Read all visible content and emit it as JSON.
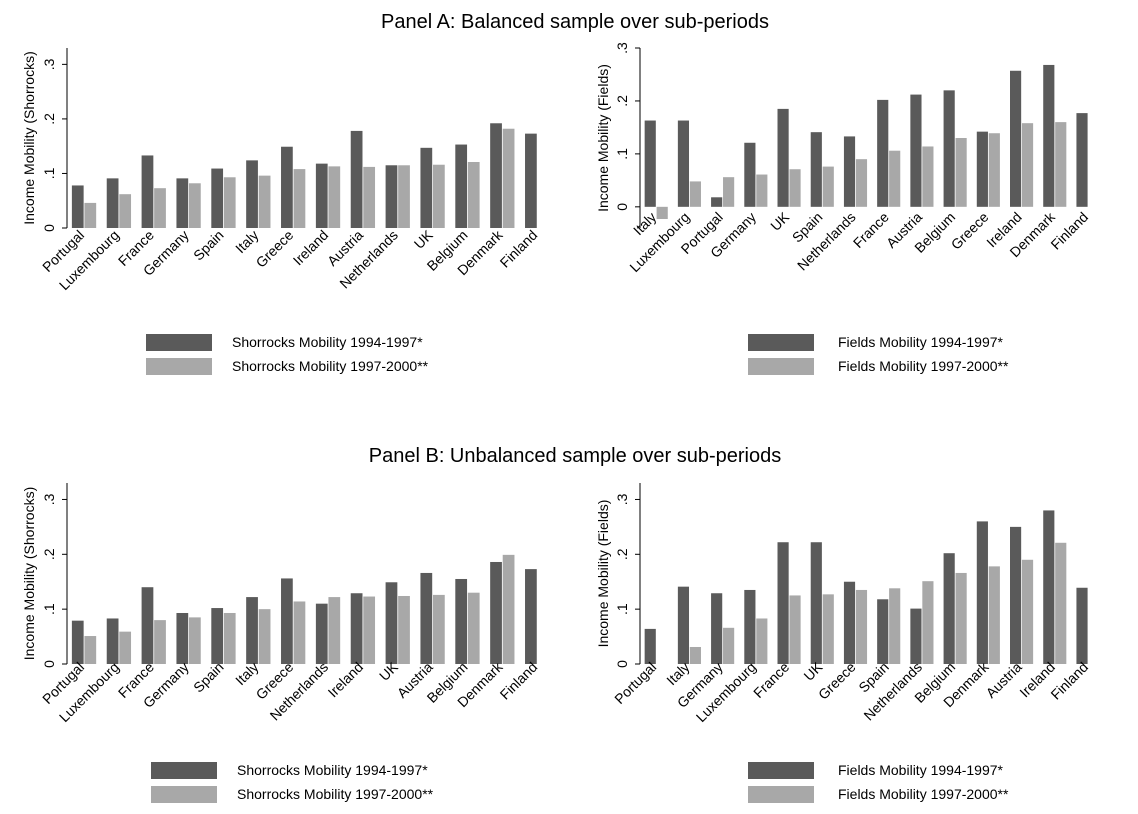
{
  "panels": [
    {
      "title": "Panel A: Balanced sample over sub-periods"
    },
    {
      "title": "Panel B: Unbalanced sample over sub-periods"
    }
  ],
  "colors": {
    "dark": "#5a5a5a",
    "light": "#a8a8a8",
    "axis": "#000000"
  },
  "chart_data": [
    {
      "type": "bar",
      "panel": "Panel A: Balanced sample over sub-periods",
      "ylabel": "Income Mobility (Shorrocks)",
      "ylim": [
        0,
        0.33
      ],
      "yticks": [
        0,
        0.1,
        0.2,
        0.3
      ],
      "ytick_labels": [
        "0",
        ".1",
        ".2",
        ".3"
      ],
      "grid": false,
      "categories": [
        "Portugal",
        "Luxembourg",
        "France",
        "Germany",
        "Spain",
        "Italy",
        "Greece",
        "Ireland",
        "Austria",
        "Netherlands",
        "UK",
        "Belgium",
        "Denmark",
        "Finland"
      ],
      "series": [
        {
          "name": "Shorrocks Mobility 1994-1997*",
          "values": [
            0.078,
            0.091,
            0.133,
            0.091,
            0.109,
            0.124,
            0.149,
            0.118,
            0.178,
            0.115,
            0.147,
            0.153,
            0.192,
            0.173
          ]
        },
        {
          "name": "Shorrocks Mobility 1997-2000**",
          "values": [
            0.046,
            0.062,
            0.073,
            0.082,
            0.093,
            0.096,
            0.108,
            0.113,
            0.112,
            0.115,
            0.116,
            0.121,
            0.182,
            null
          ]
        }
      ],
      "legend_position": "bottom"
    },
    {
      "type": "bar",
      "panel": "Panel A: Balanced sample over sub-periods",
      "ylabel": "Income Mobility (Fields)",
      "ylim": [
        -0.04,
        0.3
      ],
      "yticks": [
        0,
        0.1,
        0.2,
        0.3
      ],
      "ytick_labels": [
        "0",
        ".1",
        ".2",
        ".3"
      ],
      "grid": false,
      "categories": [
        "Italy",
        "Luxembourg",
        "Portugal",
        "Germany",
        "UK",
        "Spain",
        "Netherlands",
        "France",
        "Austria",
        "Belgium",
        "Greece",
        "Ireland",
        "Denmark",
        "Finland"
      ],
      "series": [
        {
          "name": "Fields Mobility 1994-1997*",
          "values": [
            0.163,
            0.163,
            0.018,
            0.121,
            0.185,
            0.141,
            0.133,
            0.202,
            0.212,
            0.22,
            0.142,
            0.257,
            0.268,
            0.177
          ]
        },
        {
          "name": "Fields Mobility 1997-2000**",
          "values": [
            -0.023,
            0.048,
            0.056,
            0.061,
            0.071,
            0.076,
            0.09,
            0.106,
            0.114,
            0.13,
            0.139,
            0.158,
            0.16,
            null
          ]
        }
      ],
      "legend_position": "bottom"
    },
    {
      "type": "bar",
      "panel": "Panel B: Unbalanced sample over sub-periods",
      "ylabel": "Income Mobility (Shorrocks)",
      "ylim": [
        0,
        0.33
      ],
      "yticks": [
        0,
        0.1,
        0.2,
        0.3
      ],
      "ytick_labels": [
        "0",
        ".1",
        ".2",
        ".3"
      ],
      "grid": false,
      "categories": [
        "Portugal",
        "Luxembourg",
        "France",
        "Germany",
        "Spain",
        "Italy",
        "Greece",
        "Netherlands",
        "Ireland",
        "UK",
        "Austria",
        "Belgium",
        "Denmark",
        "Finland"
      ],
      "series": [
        {
          "name": "Shorrocks Mobility 1994-1997*",
          "values": [
            0.079,
            0.083,
            0.14,
            0.093,
            0.102,
            0.122,
            0.156,
            0.11,
            0.129,
            0.149,
            0.166,
            0.155,
            0.186,
            0.173
          ]
        },
        {
          "name": "Shorrocks Mobility 1997-2000**",
          "values": [
            0.051,
            0.059,
            0.08,
            0.085,
            0.093,
            0.1,
            0.114,
            0.122,
            0.123,
            0.124,
            0.126,
            0.13,
            0.199,
            null
          ]
        }
      ],
      "legend_position": "bottom"
    },
    {
      "type": "bar",
      "panel": "Panel B: Unbalanced sample over sub-periods",
      "ylabel": "Income Mobility (Fields)",
      "ylim": [
        0,
        0.33
      ],
      "yticks": [
        0,
        0.1,
        0.2,
        0.3
      ],
      "ytick_labels": [
        "0",
        ".1",
        ".2",
        ".3"
      ],
      "grid": false,
      "categories": [
        "Portugal",
        "Italy",
        "Germany",
        "Luxembourg",
        "France",
        "UK",
        "Greece",
        "Spain",
        "Netherlands",
        "Belgium",
        "Denmark",
        "Austria",
        "Ireland",
        "Finland"
      ],
      "series": [
        {
          "name": "Fields Mobility 1994-1997*",
          "values": [
            0.064,
            0.141,
            0.129,
            0.135,
            0.222,
            0.222,
            0.15,
            0.118,
            0.101,
            0.202,
            0.26,
            0.25,
            0.28,
            0.139
          ]
        },
        {
          "name": "Fields Mobility 1997-2000**",
          "values": [
            null,
            0.031,
            0.066,
            0.083,
            0.125,
            0.127,
            0.135,
            0.138,
            0.151,
            0.166,
            0.178,
            0.19,
            0.221,
            null
          ]
        }
      ],
      "legend_position": "bottom"
    }
  ]
}
